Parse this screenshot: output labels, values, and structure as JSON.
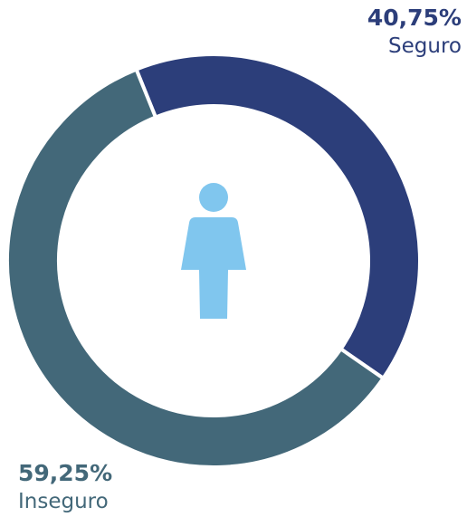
{
  "chart_data": {
    "type": "donut",
    "categories": [
      "Seguro",
      "Inseguro"
    ],
    "values": [
      40.75,
      59.25
    ],
    "value_labels": [
      "40,75%",
      "59,25%"
    ],
    "colors": [
      "#2c3e7a",
      "#436879"
    ]
  }
}
